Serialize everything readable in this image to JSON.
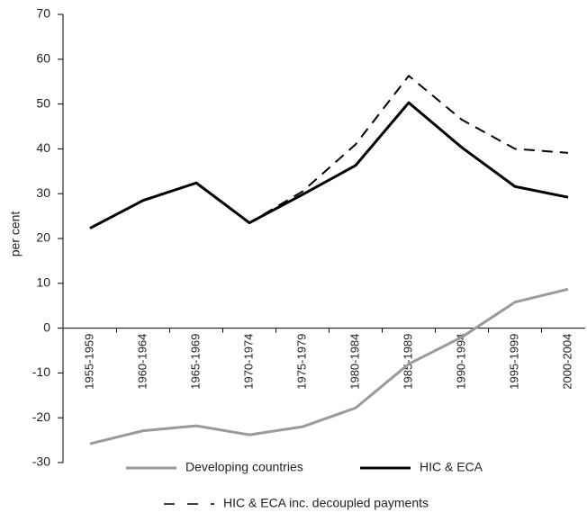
{
  "chart_data": {
    "type": "line",
    "y_label": "per cent",
    "categories": [
      "1955-1959",
      "1960-1964",
      "1965-1969",
      "1970-1974",
      "1975-1979",
      "1980-1984",
      "1985-1989",
      "1990-1994",
      "1995-1999",
      "2000-2004"
    ],
    "series": [
      {
        "name": "HIC & ECA inc. decoupled payments",
        "color": "#000000",
        "dashed": true,
        "values": [
          22.3,
          28.5,
          32.4,
          23.5,
          30.5,
          41,
          56.3,
          46.5,
          40,
          39.1
        ]
      },
      {
        "name": "Developing countries",
        "color": "#9a9a9a",
        "dashed": false,
        "values": [
          -25.8,
          -22.9,
          -21.8,
          -23.8,
          -22,
          -17.8,
          -8,
          -2,
          5.8,
          8.7
        ]
      },
      {
        "name": "HIC & ECA",
        "color": "#000000",
        "dashed": false,
        "values": [
          22.3,
          28.5,
          32.4,
          23.5,
          29.8,
          36.3,
          50.3,
          40.3,
          31.6,
          29.2
        ]
      }
    ],
    "ylim": [
      -30,
      70
    ],
    "yticks": [
      -30,
      -20,
      -10,
      0,
      10,
      20,
      30,
      40,
      50,
      60,
      70
    ]
  }
}
